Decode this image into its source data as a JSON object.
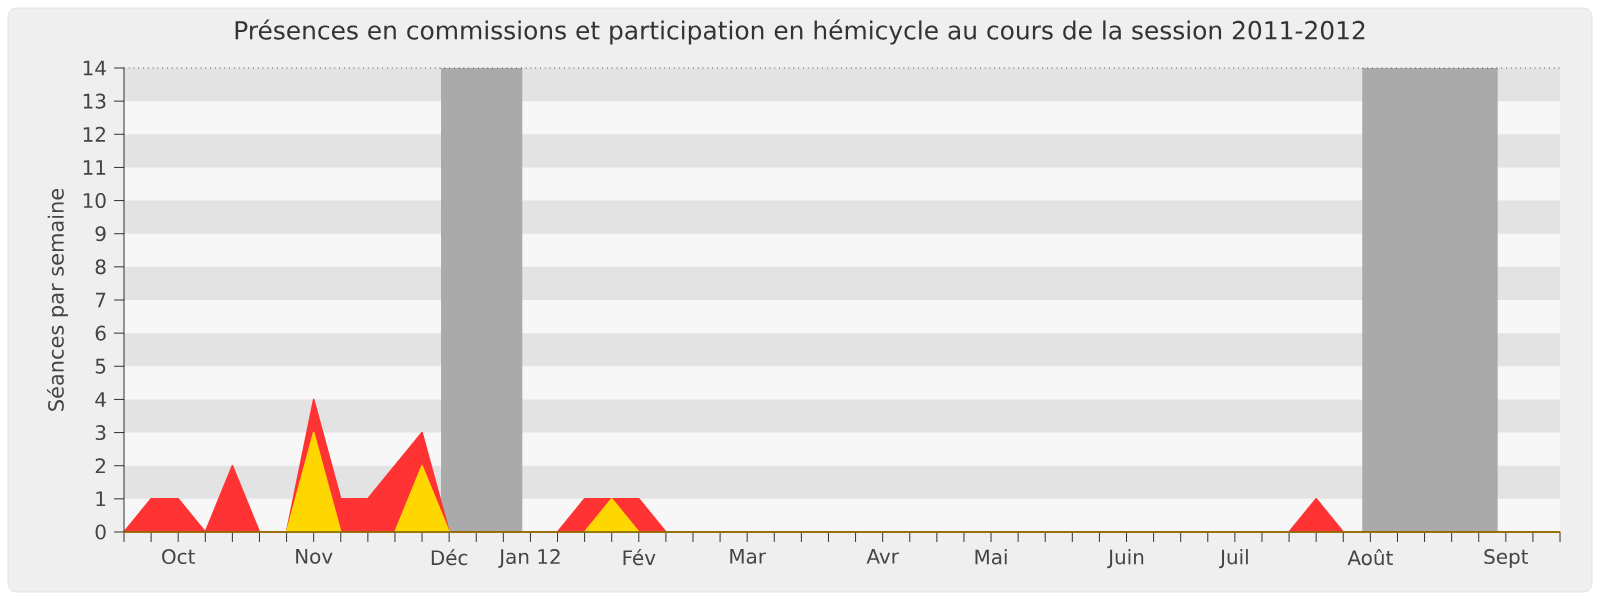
{
  "chart_data": {
    "type": "area",
    "title": "Présences en commissions et participation en hémicycle au cours de la session 2011-2012",
    "ylabel": "Séances par semaine",
    "categories": [
      null,
      null,
      "Oct",
      null,
      null,
      null,
      null,
      "Nov",
      null,
      null,
      null,
      null,
      "Déc",
      null,
      null,
      "Jan 12",
      null,
      null,
      null,
      "Fév",
      null,
      null,
      null,
      "Mar",
      null,
      null,
      null,
      null,
      "Avr",
      null,
      null,
      null,
      "Mai",
      null,
      null,
      null,
      null,
      "Juin",
      null,
      null,
      null,
      "Juil",
      null,
      null,
      null,
      null,
      "Août",
      null,
      null,
      null,
      null,
      "Sept",
      null,
      null
    ],
    "series": [
      {
        "color": "#ff3333",
        "values": [
          0,
          1,
          1,
          0,
          2,
          0,
          0,
          4,
          1,
          1,
          2,
          3,
          0,
          0,
          0,
          0,
          0,
          1,
          1,
          1,
          0,
          0,
          0,
          0,
          0,
          0,
          0,
          0,
          0,
          0,
          0,
          0,
          0,
          0,
          0,
          0,
          0,
          0,
          0,
          0,
          0,
          0,
          0,
          0,
          1,
          0,
          0,
          0,
          0,
          0,
          0,
          0,
          0,
          0
        ]
      },
      {
        "color": "#ffd700",
        "values": [
          0,
          0,
          0,
          0,
          0,
          0,
          0,
          3,
          0,
          0,
          0,
          2,
          0,
          0,
          0,
          0,
          0,
          0,
          1,
          0,
          0,
          0,
          0,
          0,
          0,
          0,
          0,
          0,
          0,
          0,
          0,
          0,
          0,
          0,
          0,
          0,
          0,
          0,
          0,
          0,
          0,
          0,
          0,
          0,
          0,
          0,
          0,
          0,
          0,
          0,
          0,
          0,
          0,
          0
        ]
      }
    ],
    "ylim": [
      0,
      14
    ],
    "yticks": [
      0,
      1,
      2,
      3,
      4,
      5,
      6,
      7,
      8,
      9,
      10,
      11,
      12,
      13,
      14
    ],
    "bands": [
      {
        "axis": "x",
        "from": "Déc",
        "to": "Jan 12",
        "color": "#aaaaaa"
      },
      {
        "axis": "x",
        "from": "Août",
        "to": "Sept",
        "color": "#aaaaaa"
      }
    ]
  }
}
